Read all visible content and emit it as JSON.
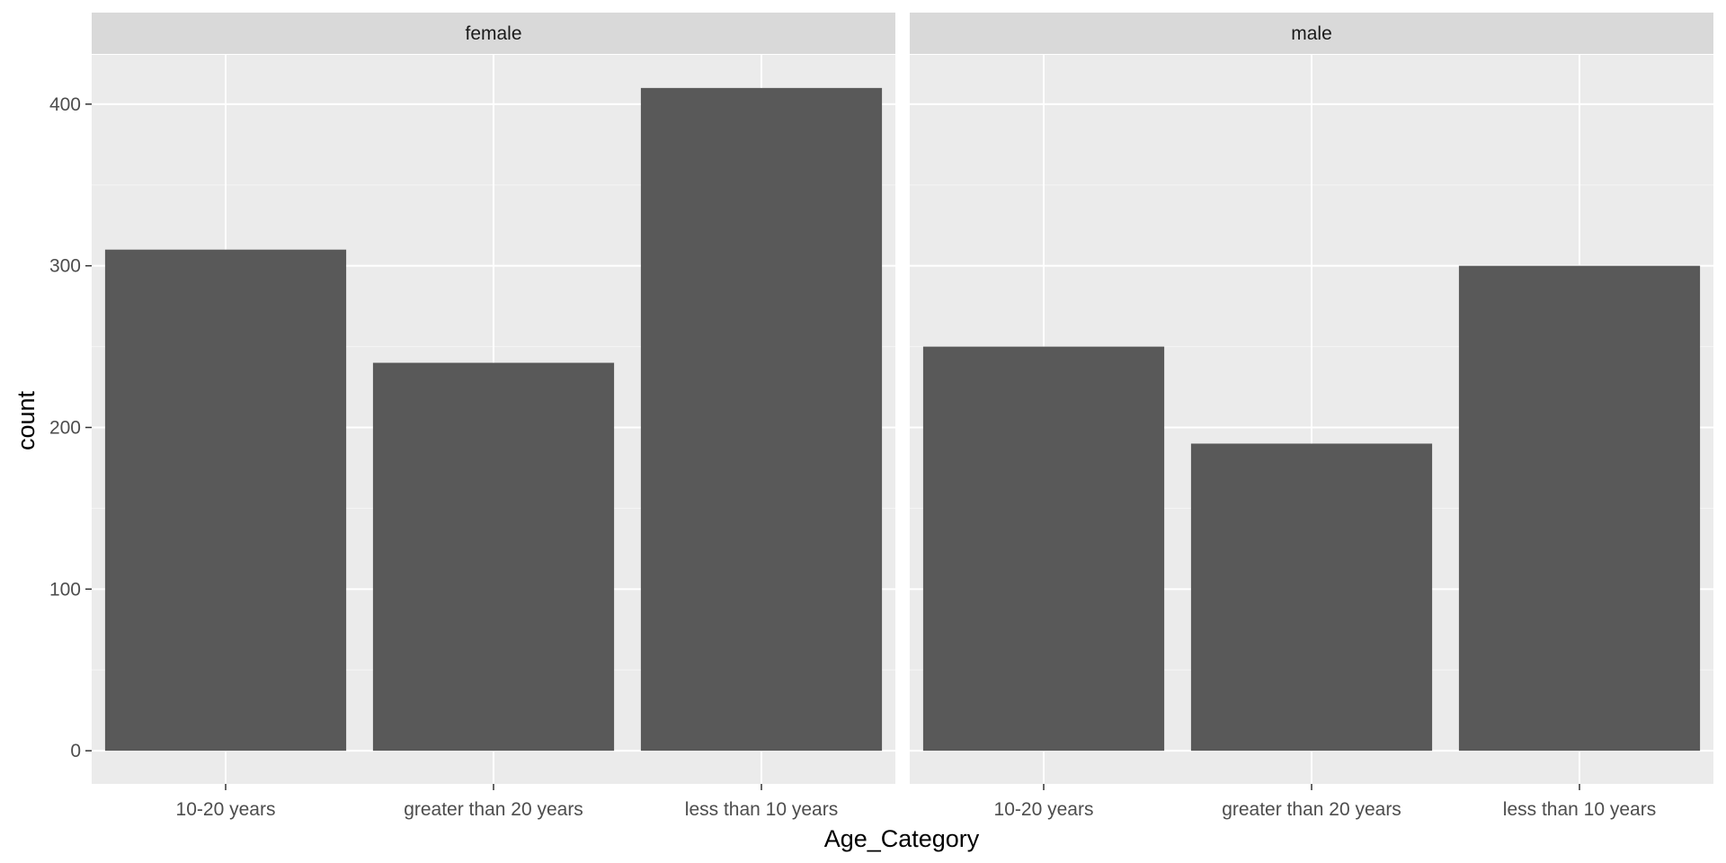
{
  "chart_data": {
    "type": "bar",
    "facet_variable_values": [
      "female",
      "male"
    ],
    "categories": [
      "10-20 years",
      "greater than 20 years",
      "less than 10 years"
    ],
    "facets": [
      {
        "label": "female",
        "values": [
          310,
          240,
          410
        ]
      },
      {
        "label": "male",
        "values": [
          250,
          190,
          300
        ]
      }
    ],
    "xlabel": "Age_Category",
    "ylabel": "count",
    "y_ticks": [
      0,
      100,
      200,
      300,
      400
    ],
    "y_tick_labels": [
      "0",
      "100",
      "200",
      "300",
      "400"
    ],
    "ylim": [
      -20.5,
      430.5
    ],
    "grid": true,
    "legend": "none"
  },
  "colors": {
    "bar": "#595959",
    "panel_background": "#ebebeb",
    "strip_background": "#d9d9d9",
    "grid_major": "#ffffff",
    "grid_minor": "#f5f5f5",
    "tick": "#333333"
  }
}
